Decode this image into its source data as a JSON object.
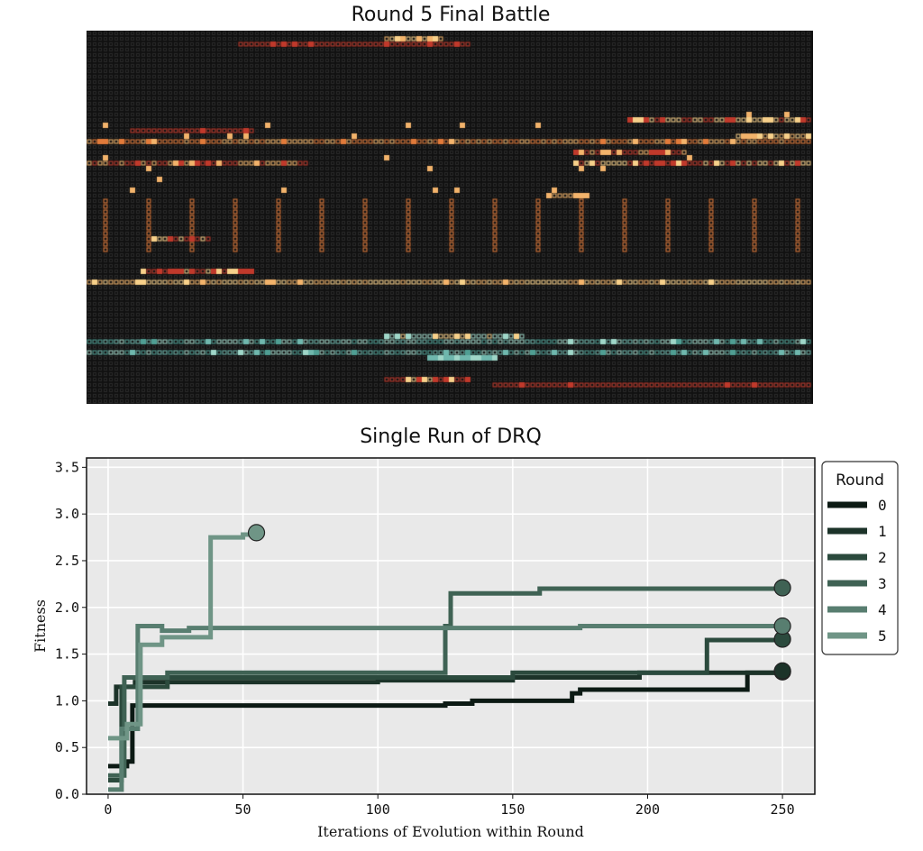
{
  "battle": {
    "title": "Round 5 Final Battle",
    "background_color": "#111111",
    "cell_color": "#2a2a2a",
    "warm_colors": [
      "#c0392b",
      "#e07a3a",
      "#f2b36b",
      "#f7d08a",
      "#d9534f"
    ],
    "cool_colors": [
      "#6fb7ad",
      "#9fd6c8",
      "#4f9e93"
    ]
  },
  "chart_data": {
    "type": "line",
    "title": "Single Run of DRQ",
    "xlabel": "Iterations of Evolution within Round",
    "ylabel": "Fitness",
    "xlim": [
      -8,
      262
    ],
    "ylim": [
      0,
      3.6
    ],
    "xticks": [
      0,
      50,
      100,
      150,
      200,
      250
    ],
    "yticks": [
      0.0,
      0.5,
      1.0,
      1.5,
      2.0,
      2.5,
      3.0,
      3.5
    ],
    "xtick_labels": [
      "0",
      "50",
      "100",
      "150",
      "200",
      "250"
    ],
    "ytick_labels": [
      "0.0",
      "0.5",
      "1.0",
      "1.5",
      "2.0",
      "2.5",
      "3.0",
      "3.5"
    ],
    "grid": true,
    "step": true,
    "legend": {
      "title": "Round",
      "placement": "right outside"
    },
    "series": [
      {
        "name": "0",
        "color": "#0c1a14",
        "points": [
          [
            0,
            0.3
          ],
          [
            3,
            0.3
          ],
          [
            5,
            0.3
          ],
          [
            7,
            0.35
          ],
          [
            8,
            0.35
          ],
          [
            9,
            0.95
          ],
          [
            100,
            0.95
          ],
          [
            125,
            0.97
          ],
          [
            135,
            1.0
          ],
          [
            170,
            1.0
          ],
          [
            172,
            1.08
          ],
          [
            175,
            1.12
          ],
          [
            235,
            1.12
          ],
          [
            237,
            1.3
          ],
          [
            250,
            1.31
          ]
        ]
      },
      {
        "name": "1",
        "color": "#1c3329",
        "points": [
          [
            0,
            0.97
          ],
          [
            2,
            0.97
          ],
          [
            3,
            1.15
          ],
          [
            10,
            1.2
          ],
          [
            90,
            1.2
          ],
          [
            100,
            1.22
          ],
          [
            150,
            1.25
          ],
          [
            195,
            1.25
          ],
          [
            197,
            1.3
          ],
          [
            250,
            1.32
          ]
        ]
      },
      {
        "name": "2",
        "color": "#2b4a3d",
        "points": [
          [
            0,
            0.15
          ],
          [
            3,
            0.15
          ],
          [
            5,
            1.15
          ],
          [
            20,
            1.15
          ],
          [
            22,
            1.25
          ],
          [
            150,
            1.3
          ],
          [
            220,
            1.3
          ],
          [
            222,
            1.65
          ],
          [
            250,
            1.66
          ]
        ]
      },
      {
        "name": "3",
        "color": "#3f6254",
        "points": [
          [
            0,
            0.2
          ],
          [
            4,
            0.2
          ],
          [
            6,
            1.25
          ],
          [
            20,
            1.25
          ],
          [
            22,
            1.3
          ],
          [
            125,
            1.8
          ],
          [
            127,
            2.15
          ],
          [
            158,
            2.15
          ],
          [
            160,
            2.2
          ],
          [
            250,
            2.21
          ]
        ]
      },
      {
        "name": "4",
        "color": "#587e70",
        "points": [
          [
            0,
            0.05
          ],
          [
            3,
            0.05
          ],
          [
            5,
            0.7
          ],
          [
            9,
            0.7
          ],
          [
            11,
            1.8
          ],
          [
            20,
            1.75
          ],
          [
            30,
            1.78
          ],
          [
            100,
            1.78
          ],
          [
            175,
            1.8
          ],
          [
            250,
            1.8
          ]
        ]
      },
      {
        "name": "5",
        "color": "#6f9586",
        "points": [
          [
            0,
            0.6
          ],
          [
            3,
            0.6
          ],
          [
            5,
            0.6
          ],
          [
            7,
            0.75
          ],
          [
            10,
            0.75
          ],
          [
            12,
            1.6
          ],
          [
            18,
            1.6
          ],
          [
            20,
            1.68
          ],
          [
            37,
            1.68
          ],
          [
            38,
            2.75
          ],
          [
            47,
            2.75
          ],
          [
            50,
            2.78
          ],
          [
            55,
            2.8
          ]
        ]
      }
    ]
  }
}
